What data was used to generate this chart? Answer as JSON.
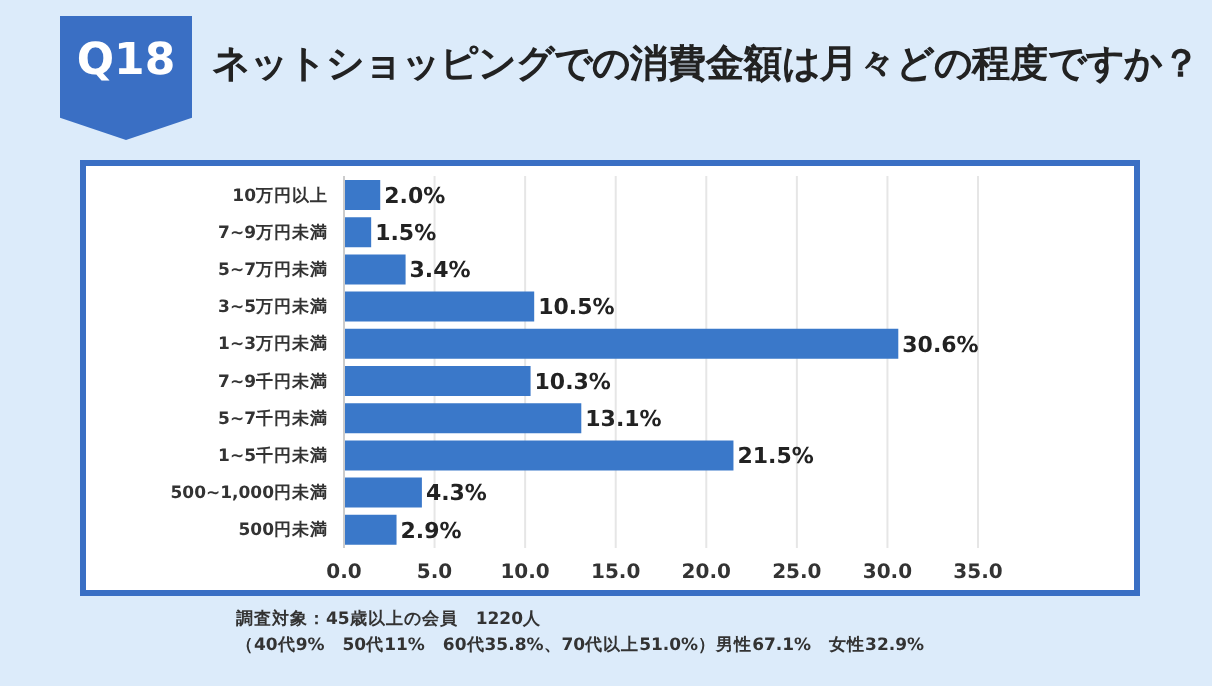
{
  "chart_data": {
    "type": "bar",
    "orientation": "horizontal",
    "title": "ネットショッピングでの消費金額は月々どの程度ですか？",
    "categories": [
      "10万円以上",
      "7~9万円未満",
      "5~7万円未満",
      "3~5万円未満",
      "1~3万円未満",
      "7~9千円未満",
      "5~7千円未満",
      "1~5千円未満",
      "500~1,000円未満",
      "500円未満"
    ],
    "values": [
      2.0,
      1.5,
      3.4,
      10.5,
      30.6,
      10.3,
      13.1,
      21.5,
      4.3,
      2.9
    ],
    "color": "#3a78c9",
    "value_labels": [
      "2.0%",
      "1.5%",
      "3.4%",
      "10.5%",
      "30.6%",
      "10.3%",
      "13.1%",
      "21.5%",
      "4.3%",
      "2.9%"
    ],
    "xlim": [
      0,
      35
    ],
    "xticks": [
      {
        "value": 0,
        "label": "0.0"
      },
      {
        "value": 5,
        "label": "5.0"
      },
      {
        "value": 10,
        "label": "10.0"
      },
      {
        "value": 15,
        "label": "15.0"
      },
      {
        "value": 20,
        "label": "20.0"
      },
      {
        "value": 25,
        "label": "25.0"
      },
      {
        "value": 30,
        "label": "30.0"
      },
      {
        "value": 35,
        "label": "35.0"
      }
    ],
    "grid": "x",
    "legend": false,
    "annotations": [
      "Q18",
      "調査対象：45歳以上の会員　1220人",
      "（40代9%　50代11%　60代35.8%、70代以上51.0%）男性67.1%　女性32.9%"
    ]
  }
}
